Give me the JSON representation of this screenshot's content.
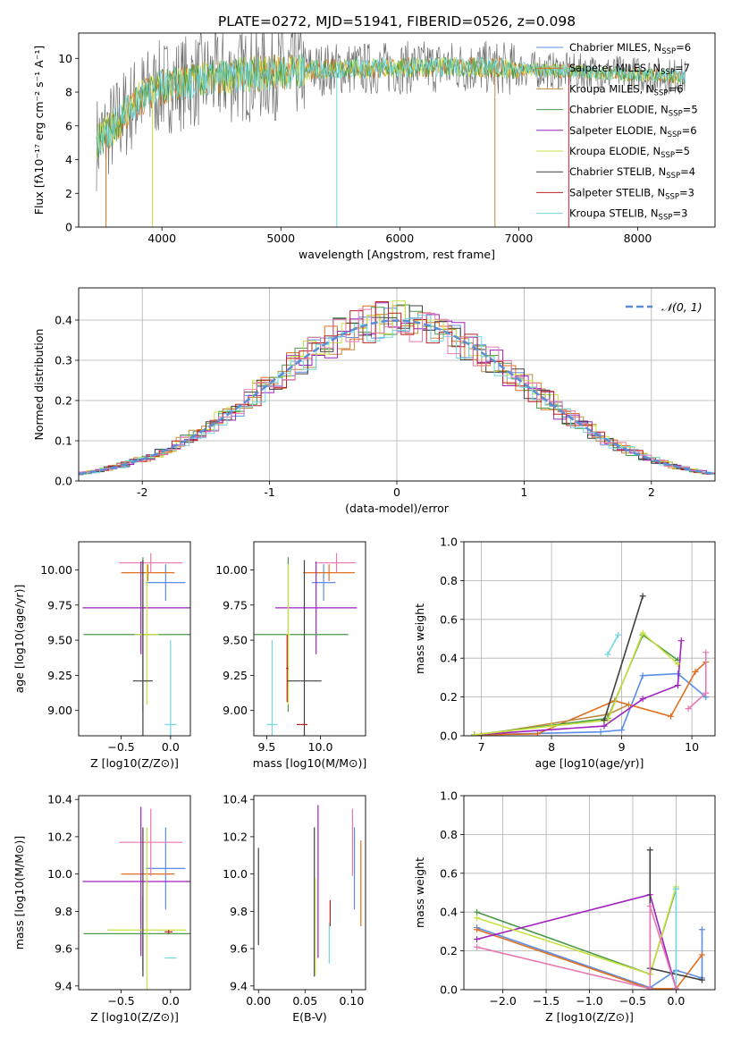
{
  "figure_title": "PLATE=0272, MJD=51941, FIBERID=0526, z=0.098",
  "colors": {
    "Chabrier MILES": "#5b8ee6",
    "Salpeter MILES": "#e07020",
    "Kroupa MILES": "#c08a40",
    "Chabrier ELODIE": "#4a9a4a",
    "Salpeter ELODIE": "#a020c0",
    "Kroupa ELODIE": "#c8e040",
    "Chabrier STELIB": "#404040",
    "Salpeter STELIB": "#c02020",
    "Kroupa STELIB": "#70d8e0",
    "extra_pink": "#e878b0",
    "data_spectrum": "#707070",
    "gauss": "#5b8ed6"
  },
  "chart_data": [
    {
      "id": "spectrum",
      "type": "line",
      "title": "PLATE=0272, MJD=51941, FIBERID=0526, z=0.098",
      "xlabel": "wavelength [Angstrom, rest frame]",
      "ylabel": "Flux [fλ10⁻¹⁷ erg cm⁻² s⁻¹ A⁻¹]",
      "xlim": [
        3300,
        8650
      ],
      "ylim": [
        0,
        11.5
      ],
      "xticks": [
        4000,
        5000,
        6000,
        7000,
        8000
      ],
      "yticks": [
        0,
        2,
        4,
        6,
        8,
        10
      ],
      "continuum": {
        "x": [
          3450,
          3600,
          3800,
          4000,
          4200,
          4500,
          4800,
          5000,
          5200,
          5500,
          5800,
          6000,
          6300,
          6600,
          6900,
          7200,
          7500,
          7800,
          8100,
          8400
        ],
        "y": [
          5.0,
          6.0,
          7.6,
          8.3,
          8.6,
          8.9,
          9.1,
          9.2,
          9.3,
          9.4,
          9.4,
          9.45,
          9.5,
          9.5,
          9.4,
          9.3,
          9.2,
          9.1,
          9.0,
          8.9
        ]
      },
      "legend": [
        {
          "label": "Chabrier MILES, N",
          "sub": "SSP",
          "tail": "=6"
        },
        {
          "label": "Salpeter MILES, N",
          "sub": "SSP",
          "tail": "=7"
        },
        {
          "label": "Kroupa MILES, N",
          "sub": "SSP",
          "tail": "=6"
        },
        {
          "label": "Chabrier ELODIE, N",
          "sub": "SSP",
          "tail": "=5"
        },
        {
          "label": "Salpeter ELODIE, N",
          "sub": "SSP",
          "tail": "=6"
        },
        {
          "label": "Kroupa ELODIE, N",
          "sub": "SSP",
          "tail": "=5"
        },
        {
          "label": "Chabrier STELIB, N",
          "sub": "SSP",
          "tail": "=4"
        },
        {
          "label": "Salpeter STELIB, N",
          "sub": "SSP",
          "tail": "=3"
        },
        {
          "label": "Kroupa STELIB, N",
          "sub": "SSP",
          "tail": "=3"
        }
      ],
      "legend_placement": "right"
    },
    {
      "id": "residuals",
      "type": "line",
      "xlabel": "(data-model)/error",
      "ylabel": "Normed distribution",
      "xlim": [
        -2.5,
        2.5
      ],
      "ylim": [
        0,
        0.48
      ],
      "xticks": [
        -2,
        -1,
        0,
        1,
        2
      ],
      "yticks": [
        0.0,
        0.1,
        0.2,
        0.3,
        0.4
      ],
      "grid": true,
      "bin_width": 0.1,
      "legend": [
        "𝒩(0, 1)"
      ],
      "legend_placement": "upper right"
    },
    {
      "id": "age_vs_Z",
      "type": "scatter",
      "xlabel": "Z [log10(Z/Z⊙)]",
      "ylabel": "age  [log10(age/yr)]",
      "xlim": [
        -0.93,
        0.2
      ],
      "ylim": [
        8.82,
        10.2
      ],
      "xticks": [
        -0.5,
        0.0
      ],
      "yticks": [
        9.0,
        9.25,
        9.5,
        9.75,
        10.0
      ],
      "xtick_labels": [
        "−0.5",
        "0.0"
      ],
      "ytick_labels": [
        "9.00",
        "9.25",
        "9.50",
        "9.75",
        "10.00"
      ],
      "errorbars": [
        {
          "model": "Chabrier MILES",
          "x": -0.05,
          "y": 9.91,
          "xerr": 0.2,
          "yerr": 0.13
        },
        {
          "model": "Salpeter MILES",
          "x": -0.23,
          "y": 9.98,
          "xerr": 0.27,
          "yerr": 0.06
        },
        {
          "model": "extra_pink",
          "x": -0.2,
          "y": 10.05,
          "xerr": 0.32,
          "yerr": 0.07
        },
        {
          "model": "Salpeter ELODIE",
          "x": -0.3,
          "y": 9.73,
          "xerr": 0.59,
          "yerr": 0.33
        },
        {
          "model": "Chabrier ELODIE",
          "x": -0.28,
          "y": 9.54,
          "xerr": 0.6,
          "yerr": 0.55
        },
        {
          "model": "Kroupa ELODIE",
          "x": -0.24,
          "y": 9.54,
          "xerr": 0.12,
          "yerr": 0.5
        },
        {
          "model": "Chabrier STELIB",
          "x": -0.28,
          "y": 9.21,
          "xerr": 0.1,
          "yerr": 0.86
        },
        {
          "model": "Kroupa STELIB",
          "x": 0.0,
          "y": 8.9,
          "xerr": 0.06,
          "yerr": 0.6
        }
      ]
    },
    {
      "id": "age_vs_mass",
      "type": "scatter",
      "xlabel": "mass [log10(M/M⊙)]",
      "ylabel": "",
      "xlim": [
        9.38,
        10.42
      ],
      "ylim": [
        8.82,
        10.2
      ],
      "xticks": [
        9.5,
        10.0
      ],
      "yticks": [
        9.0,
        9.25,
        9.5,
        9.75,
        10.0
      ],
      "xtick_labels": [
        "9.5",
        "10.0"
      ],
      "ytick_labels": [
        "9.00",
        "9.25",
        "9.50",
        "9.75",
        "10.00"
      ],
      "errorbars": [
        {
          "model": "Chabrier MILES",
          "x": 10.03,
          "y": 9.91,
          "xerr": 0.11,
          "yerr": 0.13
        },
        {
          "model": "Salpeter MILES",
          "x": 10.08,
          "y": 9.98,
          "xerr": 0.24,
          "yerr": 0.06
        },
        {
          "model": "extra_pink",
          "x": 10.15,
          "y": 10.05,
          "xerr": 0.18,
          "yerr": 0.07
        },
        {
          "model": "Salpeter ELODIE",
          "x": 9.96,
          "y": 9.73,
          "xerr": 0.38,
          "yerr": 0.33
        },
        {
          "model": "Chabrier ELODIE",
          "x": 9.7,
          "y": 9.54,
          "xerr": 0.56,
          "yerr": 0.55
        },
        {
          "model": "Kroupa ELODIE",
          "x": 9.7,
          "y": 9.54,
          "xerr": 0.02,
          "yerr": 0.5
        },
        {
          "model": "Chabrier STELIB",
          "x": 9.85,
          "y": 9.21,
          "xerr": 0.16,
          "yerr": 0.86
        },
        {
          "model": "Salpeter STELIB",
          "x": 9.69,
          "y": 9.3,
          "xerr": 0.01,
          "yerr": 0.24
        },
        {
          "model": "Kroupa STELIB",
          "x": 9.55,
          "y": 8.9,
          "xerr": 0.05,
          "yerr": 0.6
        },
        {
          "model": "Salpeter STELIB",
          "x": 9.83,
          "y": 8.9,
          "xerr": 0.05,
          "yerr": 0.0
        }
      ]
    },
    {
      "id": "weight_vs_age",
      "type": "line",
      "xlabel": "age  [log10(age/yr)]",
      "ylabel": "mass weight",
      "xlim": [
        6.75,
        10.33
      ],
      "ylim": [
        0,
        1.0
      ],
      "xticks": [
        7,
        8,
        9,
        10
      ],
      "yticks": [
        0.0,
        0.2,
        0.4,
        0.6,
        0.8,
        1.0
      ],
      "grid": true,
      "series": [
        {
          "model": "Chabrier MILES",
          "x": [
            6.9,
            8.7,
            9.0,
            9.3,
            9.8,
            10.2
          ],
          "y": [
            0.005,
            0.02,
            0.03,
            0.31,
            0.32,
            0.2
          ]
        },
        {
          "model": "Salpeter MILES",
          "x": [
            6.9,
            7.8,
            8.9,
            9.7,
            10.05,
            10.2
          ],
          "y": [
            0.005,
            0.01,
            0.18,
            0.1,
            0.33,
            0.38
          ]
        },
        {
          "model": "Kroupa MILES",
          "x": [
            7.0,
            8.8,
            9.1
          ],
          "y": [
            0.005,
            0.11,
            0.16
          ]
        },
        {
          "model": "Chabrier ELODIE",
          "x": [
            6.9,
            8.8,
            9.3,
            9.8
          ],
          "y": [
            0.005,
            0.09,
            0.52,
            0.39
          ]
        },
        {
          "model": "Salpeter ELODIE",
          "x": [
            6.9,
            8.75,
            9.3,
            9.8,
            9.85
          ],
          "y": [
            0.005,
            0.05,
            0.19,
            0.26,
            0.49
          ]
        },
        {
          "model": "Kroupa ELODIE",
          "x": [
            6.9,
            8.0,
            8.8,
            9.3,
            9.8
          ],
          "y": [
            0.005,
            0.05,
            0.08,
            0.53,
            0.37
          ]
        },
        {
          "model": "Chabrier STELIB",
          "x": [
            8.75,
            9.3
          ],
          "y": [
            0.08,
            0.72
          ]
        },
        {
          "model": "Kroupa STELIB",
          "x": [
            8.8,
            8.95
          ],
          "y": [
            0.42,
            0.52
          ]
        },
        {
          "model": "extra_pink",
          "x": [
            9.95,
            10.2,
            10.2
          ],
          "y": [
            0.14,
            0.22,
            0.43
          ]
        }
      ]
    },
    {
      "id": "mass_vs_Z",
      "type": "scatter",
      "xlabel": "Z [log10(Z/Z⊙)]",
      "ylabel": "mass [log10(M/M⊙)]",
      "xlim": [
        -0.93,
        0.2
      ],
      "ylim": [
        9.38,
        10.42
      ],
      "xticks": [
        -0.5,
        0.0
      ],
      "yticks": [
        9.4,
        9.6,
        9.8,
        10.0,
        10.2,
        10.4
      ],
      "xtick_labels": [
        "−0.5",
        "0.0"
      ],
      "ytick_labels": [
        "9.4",
        "9.6",
        "9.8",
        "10.0",
        "10.2",
        "10.4"
      ],
      "errorbars": [
        {
          "model": "Chabrier MILES",
          "x": -0.05,
          "y": 10.03,
          "xerr": 0.2,
          "yerr": 0.22
        },
        {
          "model": "Salpeter MILES",
          "x": -0.23,
          "y": 10.0,
          "xerr": 0.27,
          "yerr": 0.0
        },
        {
          "model": "extra_pink",
          "x": -0.2,
          "y": 10.17,
          "xerr": 0.32,
          "yerr": 0.18
        },
        {
          "model": "Salpeter ELODIE",
          "x": -0.3,
          "y": 9.96,
          "xerr": 0.59,
          "yerr": 0.4
        },
        {
          "model": "Chabrier ELODIE",
          "x": -0.28,
          "y": 9.68,
          "xerr": 0.6,
          "yerr": 0.2
        },
        {
          "model": "Kroupa ELODIE",
          "x": -0.24,
          "y": 9.7,
          "xerr": 0.4,
          "yerr": 0.55
        },
        {
          "model": "Chabrier STELIB",
          "x": -0.28,
          "y": 9.85,
          "xerr": 0.0,
          "yerr": 0.4
        },
        {
          "model": "Salpeter STELIB",
          "x": -0.02,
          "y": 9.69,
          "xerr": 0.04,
          "yerr": 0.01
        },
        {
          "model": "Kroupa STELIB",
          "x": 0.0,
          "y": 9.55,
          "xerr": 0.06,
          "yerr": 0.0
        }
      ]
    },
    {
      "id": "mass_vs_ebv",
      "type": "scatter",
      "xlabel": "E(B-V)",
      "ylabel": "",
      "xlim": [
        -0.005,
        0.115
      ],
      "ylim": [
        9.38,
        10.42
      ],
      "xticks": [
        0.0,
        0.05,
        0.1
      ],
      "yticks": [
        9.4,
        9.6,
        9.8,
        10.0,
        10.2,
        10.4
      ],
      "xtick_labels": [
        "0.00",
        "0.05",
        "0.10"
      ],
      "ytick_labels": [
        "9.4",
        "9.6",
        "9.8",
        "10.0",
        "10.2",
        "10.4"
      ],
      "errorbars": [
        {
          "model": "Chabrier STELIB",
          "x": 0.0,
          "y": 9.88,
          "xerr": 0.0,
          "yerr": 0.26
        },
        {
          "model": "Chabrier STELIB",
          "x": 0.06,
          "y": 9.85,
          "xerr": 0.0,
          "yerr": 0.4
        },
        {
          "model": "Kroupa ELODIE",
          "x": 0.061,
          "y": 9.72,
          "xerr": 0.0,
          "yerr": 0.26
        },
        {
          "model": "Salpeter ELODIE",
          "x": 0.064,
          "y": 9.96,
          "xerr": 0.0,
          "yerr": 0.41
        },
        {
          "model": "Salpeter STELIB",
          "x": 0.077,
          "y": 9.79,
          "xerr": 0.0,
          "yerr": 0.07
        },
        {
          "model": "Kroupa STELIB",
          "x": 0.076,
          "y": 9.63,
          "xerr": 0.0,
          "yerr": 0.11
        },
        {
          "model": "extra_pink",
          "x": 0.101,
          "y": 10.17,
          "xerr": 0.0,
          "yerr": 0.18
        },
        {
          "model": "Chabrier MILES",
          "x": 0.103,
          "y": 10.03,
          "xerr": 0.0,
          "yerr": 0.22
        },
        {
          "model": "Salpeter MILES",
          "x": 0.11,
          "y": 9.95,
          "xerr": 0.0,
          "yerr": 0.23
        }
      ]
    },
    {
      "id": "weight_vs_Z",
      "type": "line",
      "xlabel": "Z [log10(Z/Z⊙)]",
      "ylabel": "mass weight",
      "xlim": [
        -2.45,
        0.45
      ],
      "ylim": [
        0,
        1.0
      ],
      "xticks": [
        -2.0,
        -1.5,
        -1.0,
        -0.5,
        0.0
      ],
      "xtick_labels": [
        "−2.0",
        "−1.5",
        "−1.0",
        "−0.5",
        "0.0"
      ],
      "yticks": [
        0.0,
        0.2,
        0.4,
        0.6,
        0.8,
        1.0
      ],
      "grid": true,
      "series": [
        {
          "model": "Chabrier MILES",
          "x": [
            -2.3,
            -0.3,
            0.0,
            0.3,
            0.3
          ],
          "y": [
            0.32,
            0.01,
            0.1,
            0.06,
            0.31
          ]
        },
        {
          "model": "Salpeter MILES",
          "x": [
            -2.3,
            -0.3,
            0.0,
            0.3
          ],
          "y": [
            0.31,
            0.005,
            0.005,
            0.18
          ]
        },
        {
          "model": "Chabrier ELODIE",
          "x": [
            -2.3,
            -0.3,
            0.0
          ],
          "y": [
            0.4,
            0.08,
            0.52
          ]
        },
        {
          "model": "Salpeter ELODIE",
          "x": [
            -2.3,
            -0.3,
            0.0
          ],
          "y": [
            0.26,
            0.49,
            0.005
          ]
        },
        {
          "model": "Kroupa ELODIE",
          "x": [
            -2.3,
            -0.3,
            0.0
          ],
          "y": [
            0.37,
            0.08,
            0.53
          ]
        },
        {
          "model": "Chabrier STELIB",
          "x": [
            -0.3,
            -0.3,
            0.3
          ],
          "y": [
            0.72,
            0.11,
            0.05
          ]
        },
        {
          "model": "Kroupa STELIB",
          "x": [
            0.0,
            0.0
          ],
          "y": [
            0.0,
            0.52
          ]
        },
        {
          "model": "extra_pink",
          "x": [
            -2.3,
            -0.3,
            -0.3,
            0.0
          ],
          "y": [
            0.22,
            0.005,
            0.43,
            0.005
          ]
        }
      ]
    }
  ]
}
